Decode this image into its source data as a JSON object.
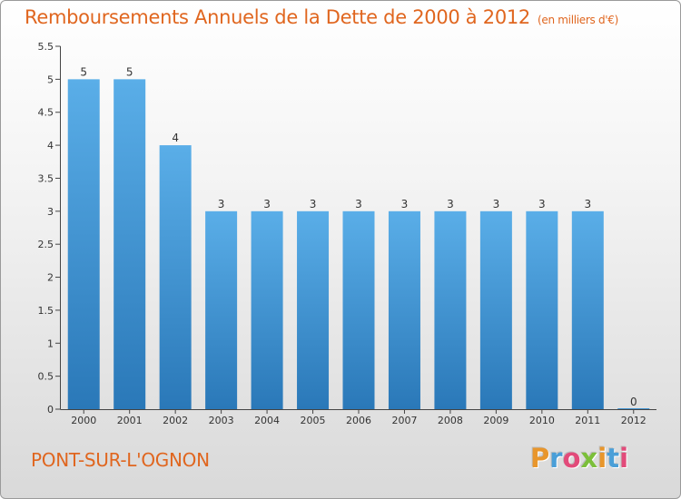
{
  "header": {
    "title": "Remboursements Annuels de la Dette de 2000 à 2012",
    "unit": "(en milliers d'€)"
  },
  "commune": "PONT-SUR-L'OGNON",
  "logo": {
    "text": "Proxiti",
    "letters": [
      {
        "ch": "P",
        "color": "#e8962c"
      },
      {
        "ch": "r",
        "color": "#4a9fd8"
      },
      {
        "ch": "o",
        "color": "#e24b7a"
      },
      {
        "ch": "x",
        "color": "#7bbf3a"
      },
      {
        "ch": "i",
        "color": "#e8962c"
      },
      {
        "ch": "t",
        "color": "#4a9fd8"
      },
      {
        "ch": "i",
        "color": "#e24b7a"
      }
    ]
  },
  "chart_data": {
    "type": "bar",
    "title": "Remboursements Annuels de la Dette de 2000 à 2012",
    "subtitle": "(en milliers d'€)",
    "categories": [
      "2000",
      "2001",
      "2002",
      "2003",
      "2004",
      "2005",
      "2006",
      "2007",
      "2008",
      "2009",
      "2010",
      "2011",
      "2012"
    ],
    "values": [
      5,
      5,
      4,
      3,
      3,
      3,
      3,
      3,
      3,
      3,
      3,
      3,
      0
    ],
    "data_labels": [
      "5",
      "5",
      "4",
      "3",
      "3",
      "3",
      "3",
      "3",
      "3",
      "3",
      "3",
      "3",
      "0"
    ],
    "ylim": [
      0,
      5.5
    ],
    "y_ticks": [
      0,
      0.5,
      1,
      1.5,
      2,
      2.5,
      3,
      3.5,
      4,
      4.5,
      5,
      5.5
    ],
    "y_tick_labels": [
      "0",
      "0.5",
      "1",
      "1.5",
      "2",
      "2.5",
      "3",
      "3.5",
      "4",
      "4.5",
      "5",
      "5.5"
    ],
    "grid": false,
    "colors": {
      "bar_light": "#5aaee8",
      "bar_dark": "#2a78b8",
      "title": "#e0661f"
    }
  }
}
